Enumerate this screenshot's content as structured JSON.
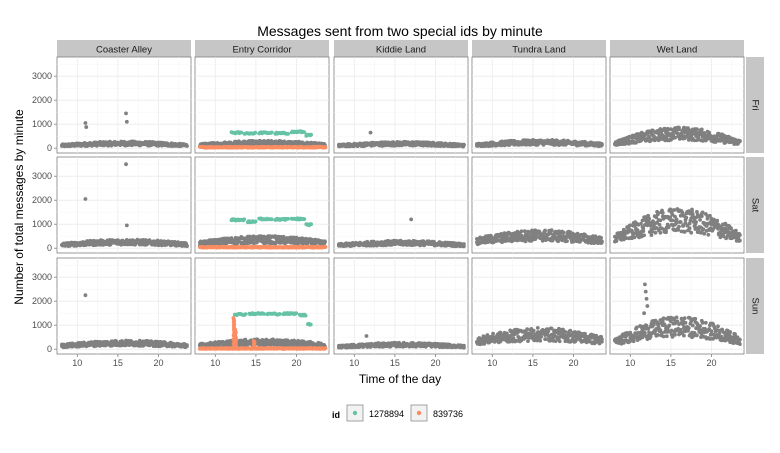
{
  "chart_data": {
    "type": "scatter",
    "title": "Messages sent from two special ids by minute",
    "xlabel": "Time of the day",
    "ylabel": "Number of total messages by minute",
    "xlim": [
      7.5,
      24
    ],
    "ylim": [
      -200,
      3800
    ],
    "x_ticks": [
      10,
      15,
      20
    ],
    "x_tick_labels": [
      "10",
      "15",
      "20"
    ],
    "y_ticks": [
      0,
      1000,
      2000,
      3000
    ],
    "y_tick_labels": [
      "0",
      "1000",
      "2000",
      "3000"
    ],
    "grid": true,
    "facet_columns": [
      "Coaster Alley",
      "Entry Corridor",
      "Kiddie Land",
      "Tundra Land",
      "Wet Land"
    ],
    "facet_rows": [
      "Fri",
      "Sat",
      "Sun"
    ],
    "legend": {
      "title": "id",
      "position": "bottom",
      "entries": [
        {
          "label": "1278894",
          "color": "#66c2a5"
        },
        {
          "label": "839736",
          "color": "#fc8d62"
        }
      ]
    },
    "colors": {
      "total": "#808080",
      "1278894": "#66c2a5",
      "839736": "#fc8d62"
    },
    "base_levels": {
      "Coaster Alley": {
        "Fri": 180,
        "Sat": 230,
        "Sun": 230
      },
      "Entry Corridor": {
        "Fri": 200,
        "Sat": 320,
        "Sun": 260
      },
      "Kiddie Land": {
        "Fri": 170,
        "Sat": 200,
        "Sun": 170
      },
      "Tundra Land": {
        "Fri": 220,
        "Sat": 480,
        "Sun": 560
      },
      "Wet Land": {
        "Fri": 550,
        "Sat": 1050,
        "Sun": 850
      }
    },
    "outliers": [
      {
        "facet": "Coaster Alley",
        "day": "Fri",
        "x": 11.0,
        "y": 1050
      },
      {
        "facet": "Coaster Alley",
        "day": "Fri",
        "x": 11.1,
        "y": 880
      },
      {
        "facet": "Coaster Alley",
        "day": "Fri",
        "x": 16.0,
        "y": 1450
      },
      {
        "facet": "Coaster Alley",
        "day": "Fri",
        "x": 16.1,
        "y": 1100
      },
      {
        "facet": "Coaster Alley",
        "day": "Sat",
        "x": 11.0,
        "y": 2050
      },
      {
        "facet": "Coaster Alley",
        "day": "Sat",
        "x": 16.0,
        "y": 3500
      },
      {
        "facet": "Coaster Alley",
        "day": "Sat",
        "x": 16.1,
        "y": 950
      },
      {
        "facet": "Coaster Alley",
        "day": "Sun",
        "x": 11.0,
        "y": 2250
      },
      {
        "facet": "Kiddie Land",
        "day": "Fri",
        "x": 12.0,
        "y": 650
      },
      {
        "facet": "Kiddie Land",
        "day": "Sat",
        "x": 17.0,
        "y": 1200
      },
      {
        "facet": "Kiddie Land",
        "day": "Sun",
        "x": 11.5,
        "y": 550
      },
      {
        "facet": "Wet Land",
        "day": "Sun",
        "x": 11.8,
        "y": 2700
      },
      {
        "facet": "Wet Land",
        "day": "Sun",
        "x": 11.9,
        "y": 2400
      },
      {
        "facet": "Wet Land",
        "day": "Sun",
        "x": 12.0,
        "y": 2100
      },
      {
        "facet": "Wet Land",
        "day": "Sun",
        "x": 12.1,
        "y": 1800
      },
      {
        "facet": "Wet Land",
        "day": "Sun",
        "x": 11.7,
        "y": 1500
      }
    ],
    "series": [
      {
        "name": "1278894",
        "facet": "Entry Corridor",
        "segments": {
          "Fri": [
            [
              12.0,
              13.2,
              640
            ],
            [
              13.6,
              15.0,
              620
            ],
            [
              15.4,
              17.0,
              640
            ],
            [
              17.4,
              19.0,
              620
            ],
            [
              19.4,
              21.0,
              680
            ],
            [
              21.2,
              21.8,
              540
            ]
          ],
          "Sat": [
            [
              12.0,
              13.6,
              1180
            ],
            [
              14.0,
              15.0,
              1100
            ],
            [
              15.4,
              17.0,
              1220
            ],
            [
              17.4,
              19.0,
              1200
            ],
            [
              19.4,
              21.0,
              1220
            ],
            [
              21.2,
              21.8,
              980
            ]
          ],
          "Sun": [
            [
              12.4,
              13.8,
              1450
            ],
            [
              14.2,
              16.0,
              1480
            ],
            [
              16.4,
              18.0,
              1470
            ],
            [
              18.4,
              20.0,
              1480
            ],
            [
              20.4,
              21.2,
              1420
            ],
            [
              21.4,
              21.8,
              1050
            ]
          ]
        }
      },
      {
        "name": "839736",
        "facet": "Entry Corridor",
        "base": {
          "Fri": 40,
          "Sat": 40,
          "Sun": 30
        },
        "spikes": [
          {
            "day": "Sun",
            "x": 12.3,
            "y": 1300
          },
          {
            "day": "Sun",
            "x": 12.5,
            "y": 850
          },
          {
            "day": "Sun",
            "x": 14.8,
            "y": 380
          }
        ]
      }
    ]
  }
}
